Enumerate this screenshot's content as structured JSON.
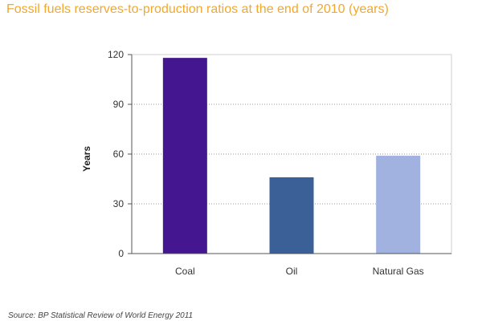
{
  "title": "Fossil fuels reserves-to-production ratios at the end of 2010 (years)",
  "source": "Source: BP Statistical Review of World Energy 2011",
  "chart_data": {
    "type": "bar",
    "title": "Fossil fuels reserves-to-production ratios at the end of 2010 (years)",
    "xlabel": "",
    "ylabel": "Years",
    "categories": [
      "Coal",
      "Oil",
      "Natural Gas"
    ],
    "values": [
      118,
      46,
      59
    ],
    "colors": [
      "#44168f",
      "#3b6098",
      "#a1b1e0"
    ],
    "ylim": [
      0,
      120
    ],
    "yticks": [
      0,
      30,
      60,
      90,
      120
    ],
    "grid": "horizontal dotted",
    "legend": "none"
  }
}
